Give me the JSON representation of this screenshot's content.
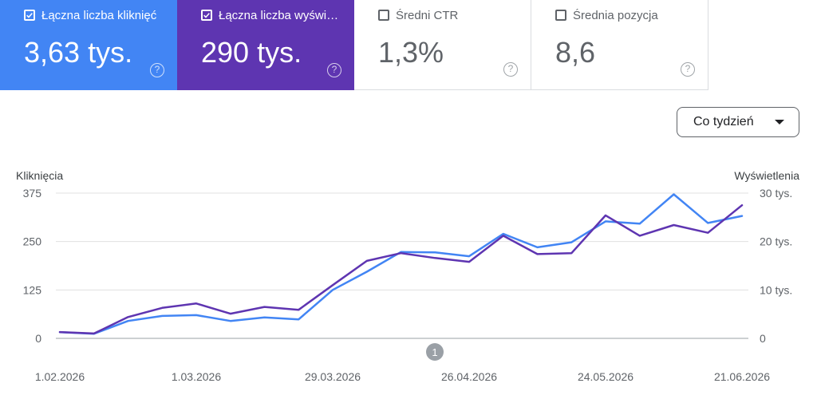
{
  "cards": [
    {
      "label": "Łączna liczba kliknięć",
      "value": "3,63 tys.",
      "checked": true,
      "color": "#4285f4"
    },
    {
      "label": "Łączna liczba wyświetleń",
      "value": "290 tys.",
      "checked": true,
      "color": "#5e35b1"
    },
    {
      "label": "Średni CTR",
      "value": "1,3%",
      "checked": false
    },
    {
      "label": "Średnia pozycja",
      "value": "8,6",
      "checked": false
    }
  ],
  "help_glyph": "?",
  "period_select": {
    "value": "Co tydzień"
  },
  "annotation_marker": "1",
  "chart_data": {
    "type": "line",
    "title": "",
    "xlabel": "",
    "y_left_label": "Kliknięcia",
    "y_right_label": "Wyświetlenia",
    "x": [
      "1.02.2026",
      "8.02.2026",
      "15.02.2026",
      "22.02.2026",
      "1.03.2026",
      "8.03.2026",
      "15.03.2026",
      "22.03.2026",
      "29.03.2026",
      "5.04.2026",
      "12.04.2026",
      "19.04.2026",
      "26.04.2026",
      "3.05.2026",
      "10.05.2026",
      "17.05.2026",
      "24.05.2026",
      "31.05.2026",
      "7.06.2026",
      "14.06.2026",
      "21.06.2026"
    ],
    "x_tick_labels": [
      "1.02.2026",
      "1.03.2026",
      "29.03.2026",
      "26.04.2026",
      "24.05.2026",
      "21.06.2026"
    ],
    "y_left": {
      "lim": [
        0,
        375
      ],
      "ticks": [
        "0",
        "125",
        "250",
        "375"
      ]
    },
    "y_right": {
      "lim": [
        0,
        30000
      ],
      "ticks": [
        "0",
        "10 tys.",
        "20 tys.",
        "30 tys."
      ]
    },
    "grid": true,
    "series": [
      {
        "name": "Kliknięcia",
        "axis": "left",
        "color": "#4285f4",
        "values": [
          16,
          12,
          45,
          58,
          60,
          45,
          54,
          49,
          125,
          172,
          223,
          222,
          212,
          270,
          235,
          248,
          302,
          296,
          372,
          298,
          316
        ]
      },
      {
        "name": "Wyświetlenia",
        "axis": "right",
        "color": "#5e35b1",
        "values": [
          1300,
          1000,
          4400,
          6300,
          7200,
          5100,
          6500,
          5900,
          11000,
          16000,
          17600,
          16600,
          15800,
          21200,
          17400,
          17600,
          25400,
          21200,
          23400,
          21800,
          27500
        ]
      }
    ]
  }
}
